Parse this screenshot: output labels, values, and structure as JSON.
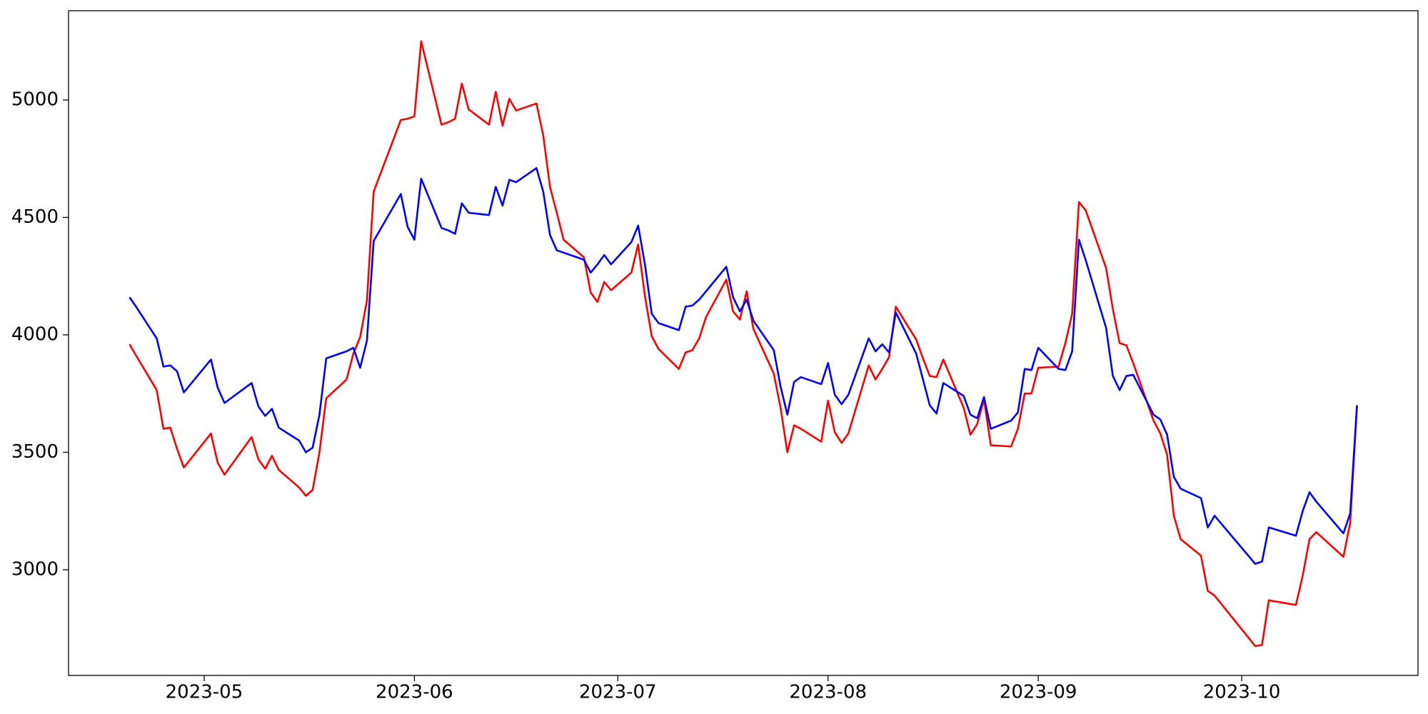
{
  "chart_data": {
    "type": "line",
    "x": [
      "2023-04-20",
      "2023-04-21",
      "2023-04-24",
      "2023-04-25",
      "2023-04-26",
      "2023-04-27",
      "2023-04-28",
      "2023-05-02",
      "2023-05-03",
      "2023-05-04",
      "2023-05-08",
      "2023-05-09",
      "2023-05-10",
      "2023-05-11",
      "2023-05-12",
      "2023-05-15",
      "2023-05-16",
      "2023-05-17",
      "2023-05-18",
      "2023-05-19",
      "2023-05-22",
      "2023-05-23",
      "2023-05-24",
      "2023-05-25",
      "2023-05-26",
      "2023-05-30",
      "2023-05-31",
      "2023-06-01",
      "2023-06-02",
      "2023-06-05",
      "2023-06-06",
      "2023-06-07",
      "2023-06-08",
      "2023-06-09",
      "2023-06-12",
      "2023-06-13",
      "2023-06-14",
      "2023-06-15",
      "2023-06-16",
      "2023-06-19",
      "2023-06-20",
      "2023-06-21",
      "2023-06-22",
      "2023-06-23",
      "2023-06-26",
      "2023-06-27",
      "2023-06-28",
      "2023-06-29",
      "2023-06-30",
      "2023-07-03",
      "2023-07-04",
      "2023-07-05",
      "2023-07-06",
      "2023-07-07",
      "2023-07-10",
      "2023-07-11",
      "2023-07-12",
      "2023-07-13",
      "2023-07-14",
      "2023-07-17",
      "2023-07-18",
      "2023-07-19",
      "2023-07-20",
      "2023-07-21",
      "2023-07-24",
      "2023-07-25",
      "2023-07-26",
      "2023-07-27",
      "2023-07-28",
      "2023-07-31",
      "2023-08-01",
      "2023-08-02",
      "2023-08-03",
      "2023-08-04",
      "2023-08-07",
      "2023-08-08",
      "2023-08-09",
      "2023-08-10",
      "2023-08-11",
      "2023-08-14",
      "2023-08-15",
      "2023-08-16",
      "2023-08-17",
      "2023-08-18",
      "2023-08-21",
      "2023-08-22",
      "2023-08-23",
      "2023-08-24",
      "2023-08-25",
      "2023-08-28",
      "2023-08-29",
      "2023-08-30",
      "2023-08-31",
      "2023-09-01",
      "2023-09-04",
      "2023-09-05",
      "2023-09-06",
      "2023-09-07",
      "2023-09-08",
      "2023-09-11",
      "2023-09-12",
      "2023-09-13",
      "2023-09-14",
      "2023-09-15",
      "2023-09-18",
      "2023-09-19",
      "2023-09-20",
      "2023-09-21",
      "2023-09-22",
      "2023-09-25",
      "2023-09-26",
      "2023-09-27",
      "2023-10-03",
      "2023-10-04",
      "2023-10-05",
      "2023-10-09",
      "2023-10-10",
      "2023-10-11",
      "2023-10-12",
      "2023-10-16",
      "2023-10-17",
      "2023-10-18"
    ],
    "series": [
      {
        "color": "#ff0000",
        "values": [
          3960,
          3910,
          3765,
          3600,
          3605,
          3515,
          3435,
          3580,
          3455,
          3405,
          3565,
          3470,
          3430,
          3485,
          3425,
          3350,
          3315,
          3340,
          3500,
          3730,
          3810,
          3920,
          3990,
          4145,
          4610,
          4915,
          4920,
          4930,
          5250,
          4895,
          4905,
          4920,
          5070,
          4960,
          4895,
          5035,
          4890,
          5005,
          4955,
          4985,
          4850,
          4630,
          4520,
          4405,
          4330,
          4180,
          4140,
          4225,
          4190,
          4265,
          4385,
          4165,
          3995,
          3940,
          3855,
          3925,
          3935,
          3985,
          4075,
          4235,
          4100,
          4065,
          4185,
          4025,
          3835,
          3690,
          3500,
          3615,
          3600,
          3545,
          3720,
          3585,
          3540,
          3580,
          3870,
          3810,
          3855,
          3905,
          4120,
          3980,
          3900,
          3825,
          3820,
          3895,
          3690,
          3575,
          3620,
          3725,
          3530,
          3525,
          3600,
          3750,
          3750,
          3860,
          3865,
          3965,
          4090,
          4565,
          4530,
          4285,
          4110,
          3965,
          3955,
          3880,
          3635,
          3580,
          3490,
          3230,
          3130,
          3060,
          2910,
          2890,
          2675,
          2680,
          2870,
          2850,
          2975,
          3130,
          3160,
          3055,
          3200,
          3700
        ]
      },
      {
        "color": "#0000ff",
        "values": [
          4160,
          4118,
          3985,
          3865,
          3870,
          3845,
          3755,
          3895,
          3775,
          3710,
          3795,
          3695,
          3655,
          3685,
          3605,
          3550,
          3500,
          3520,
          3660,
          3900,
          3930,
          3945,
          3860,
          3975,
          4400,
          4600,
          4460,
          4405,
          4665,
          4455,
          4445,
          4430,
          4560,
          4520,
          4510,
          4630,
          4550,
          4660,
          4650,
          4710,
          4610,
          4425,
          4360,
          4350,
          4320,
          4265,
          4300,
          4340,
          4300,
          4395,
          4465,
          4300,
          4090,
          4050,
          4020,
          4120,
          4125,
          4150,
          4185,
          4290,
          4160,
          4100,
          4150,
          4060,
          3935,
          3780,
          3660,
          3800,
          3820,
          3790,
          3880,
          3745,
          3705,
          3745,
          3985,
          3930,
          3960,
          3925,
          4095,
          3920,
          3810,
          3700,
          3665,
          3795,
          3740,
          3660,
          3645,
          3735,
          3600,
          3635,
          3670,
          3855,
          3850,
          3945,
          3855,
          3850,
          3930,
          4405,
          4318,
          4030,
          3825,
          3765,
          3825,
          3830,
          3660,
          3640,
          3575,
          3395,
          3345,
          3305,
          3180,
          3230,
          3025,
          3035,
          3180,
          3145,
          3250,
          3330,
          3290,
          3155,
          3240,
          3700
        ]
      }
    ],
    "xlim": [
      "2023-04-11",
      "2023-10-27"
    ],
    "xticks": [
      {
        "value": "2023-05-01",
        "label": "2023-05"
      },
      {
        "value": "2023-06-01",
        "label": "2023-06"
      },
      {
        "value": "2023-07-01",
        "label": "2023-07"
      },
      {
        "value": "2023-08-01",
        "label": "2023-08"
      },
      {
        "value": "2023-09-01",
        "label": "2023-09"
      },
      {
        "value": "2023-10-01",
        "label": "2023-10"
      }
    ],
    "ylim": [
      2550,
      5380
    ],
    "yticks": [
      3000,
      3500,
      4000,
      4500,
      5000
    ],
    "grid": false
  }
}
